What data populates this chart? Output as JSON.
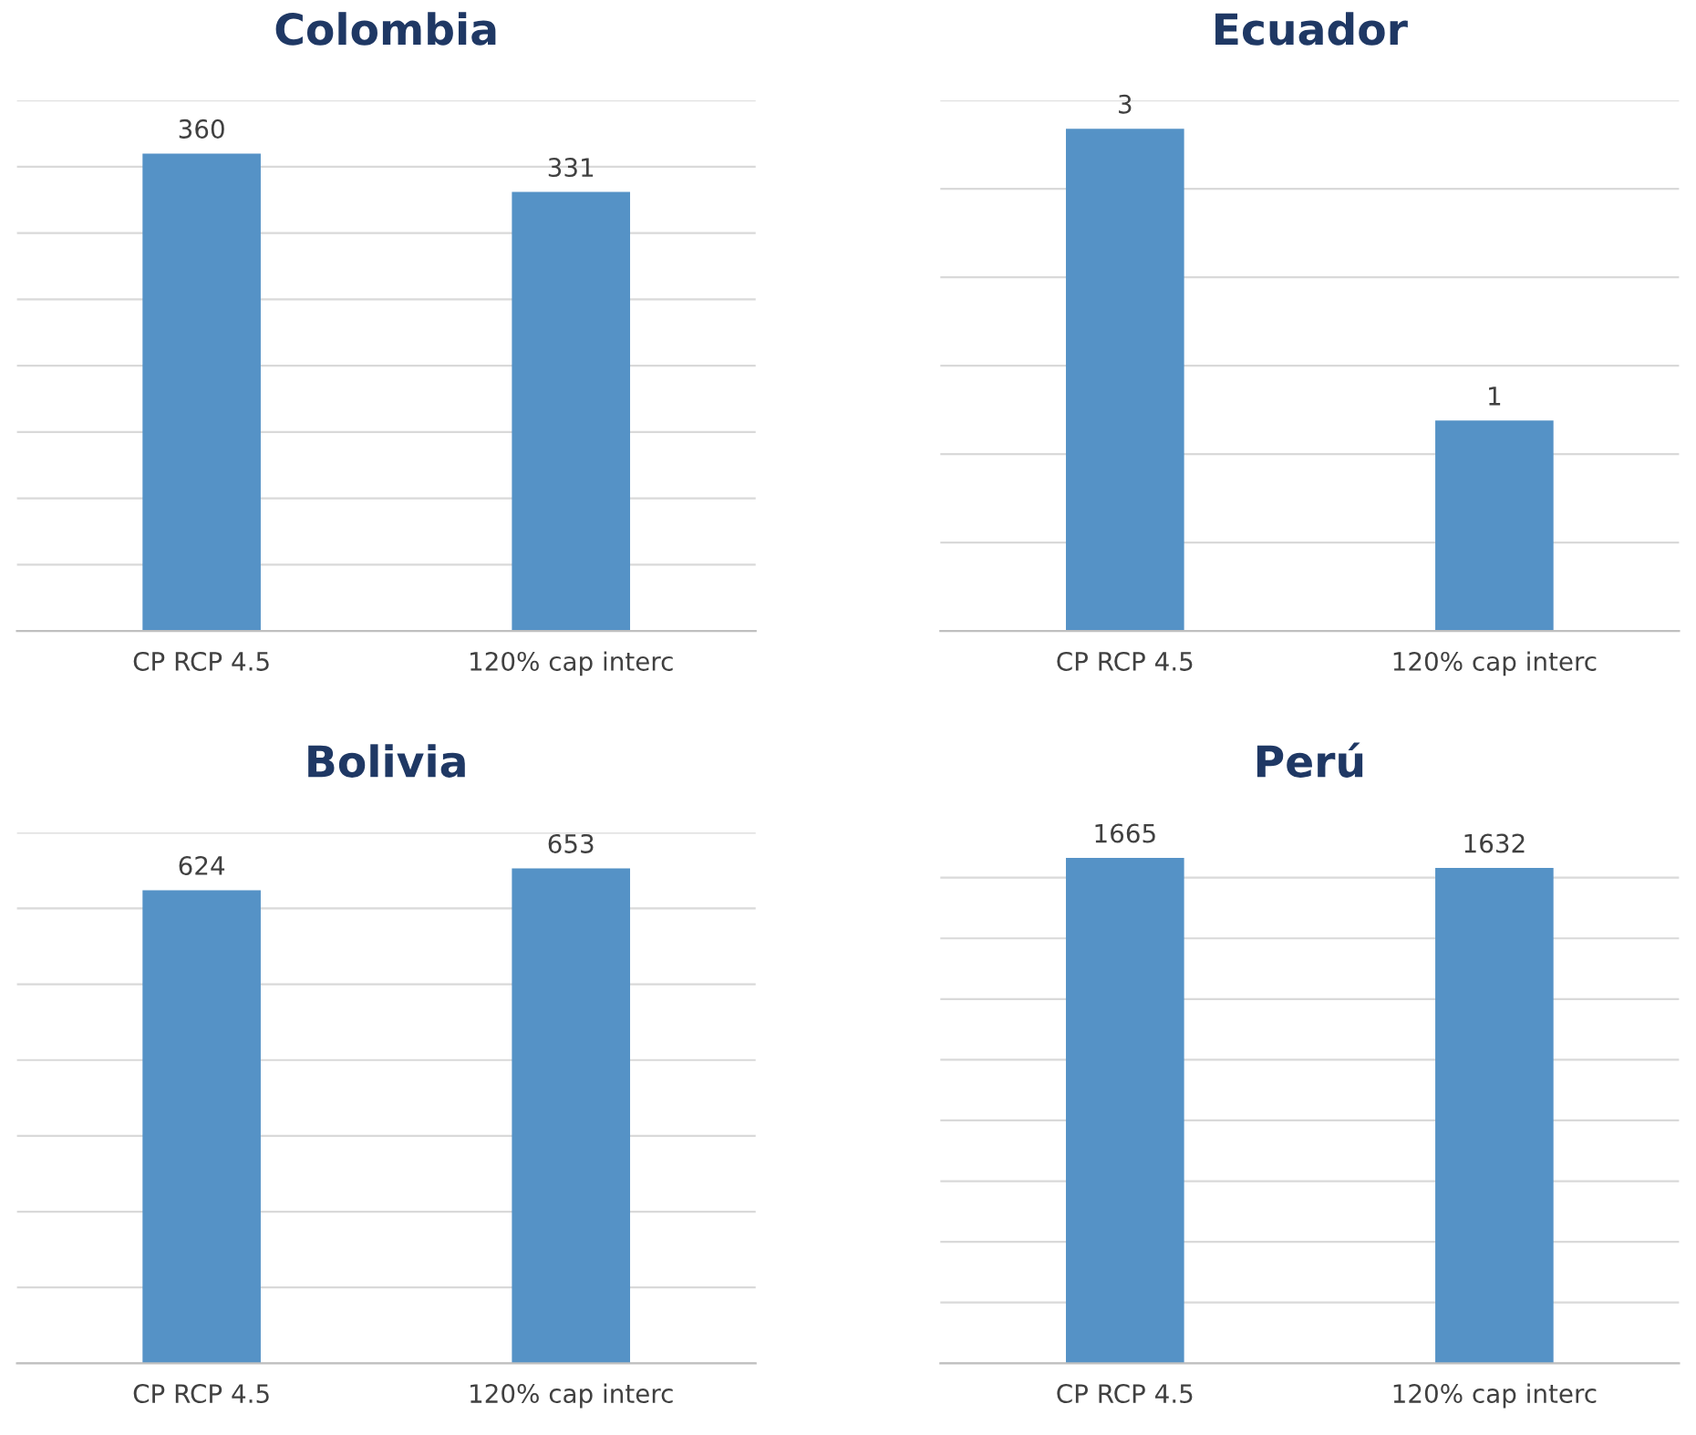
{
  "chart_data": [
    {
      "type": "bar",
      "title": "Colombia",
      "categories": [
        "CP RCP 4.5",
        "120% cap interc"
      ],
      "values": [
        360,
        331
      ],
      "color": "#5592c6",
      "data_labels": true,
      "ylim": [
        0,
        400
      ],
      "yticks": [
        {
          "value": 0,
          "label": null
        },
        {
          "value": 50,
          "label": null
        },
        {
          "value": 100,
          "label": null
        },
        {
          "value": 150,
          "label": null
        },
        {
          "value": 200,
          "label": null
        },
        {
          "value": 250,
          "label": null
        },
        {
          "value": 300,
          "label": null
        },
        {
          "value": 350,
          "label": null
        },
        {
          "value": 400,
          "label": null
        }
      ],
      "grid": "y",
      "tick_labels": "x"
    },
    {
      "type": "bar",
      "title": "Ecuador",
      "categories": [
        "CP RCP 4.5",
        "120% cap interc"
      ],
      "values": [
        2.84,
        1.19
      ],
      "value_labels": [
        "3",
        "1"
      ],
      "color": "#5592c6",
      "ylim": [
        0,
        3
      ],
      "yticks": [
        {
          "value": 0,
          "label": null
        },
        {
          "value": 0.5,
          "label": null
        },
        {
          "value": 1,
          "label": null
        },
        {
          "value": 1.5,
          "label": null
        },
        {
          "value": 2,
          "label": null
        },
        {
          "value": 2.5,
          "label": null
        },
        {
          "value": 3,
          "label": null
        }
      ],
      "grid": "y",
      "tick_labels": "x"
    },
    {
      "type": "bar",
      "title": "Bolivia",
      "categories": [
        "CP RCP 4.5",
        "120% cap interc"
      ],
      "values": [
        624,
        653
      ],
      "color": "#5592c6",
      "data_labels": true,
      "ylim": [
        0,
        700
      ],
      "yticks": [
        {
          "value": 0,
          "label": null
        },
        {
          "value": 100,
          "label": null
        },
        {
          "value": 200,
          "label": null
        },
        {
          "value": 300,
          "label": null
        },
        {
          "value": 400,
          "label": null
        },
        {
          "value": 500,
          "label": null
        },
        {
          "value": 600,
          "label": null
        },
        {
          "value": 700,
          "label": null
        }
      ],
      "grid": "y",
      "tick_labels": "x"
    },
    {
      "type": "bar",
      "title": "Perú",
      "categories": [
        "CP RCP 4.5",
        "120% cap interc"
      ],
      "values": [
        1665,
        1632
      ],
      "color": "#5592c6",
      "data_labels": true,
      "yticks": [
        {
          "value": 0,
          "label": null
        },
        {
          "value": 200,
          "label": null
        },
        {
          "value": 400,
          "label": null
        },
        {
          "value": 600,
          "label": null
        },
        {
          "value": 800,
          "label": null
        },
        {
          "value": 1000,
          "label": null
        },
        {
          "value": 1200,
          "label": null
        },
        {
          "value": 1400,
          "label": null
        },
        {
          "value": 1600,
          "label": null
        }
      ],
      "grid": "y",
      "tick_labels": "x"
    }
  ]
}
